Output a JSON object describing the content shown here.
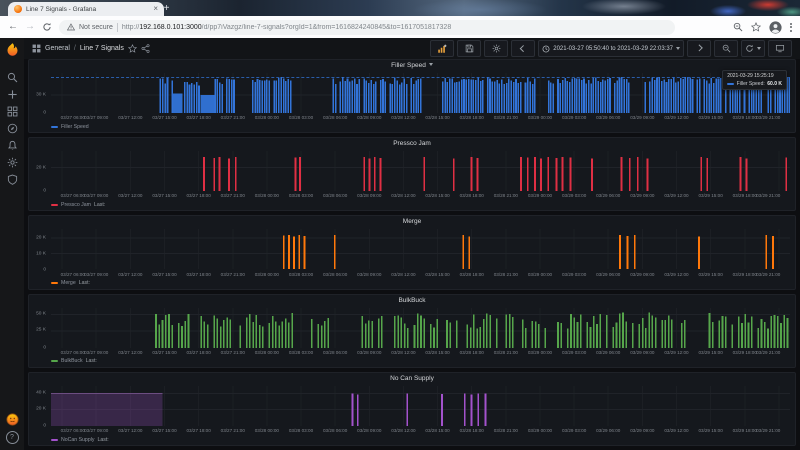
{
  "browser": {
    "tab": {
      "title": "Line 7 Signals - Grafana",
      "close_glyph": "×",
      "new_tab_glyph": "+"
    },
    "toolbar": {
      "back_glyph": "←",
      "forward_glyph": "→"
    },
    "address": {
      "security_label": "Not secure",
      "scheme": "http://",
      "host": "192.168.0.101:3000",
      "path": "/d/pp7iVazgz/line-7-signals?orgId=1&from=1616824240845&to=1617051817328"
    }
  },
  "grafana": {
    "nav": {
      "folder": "General",
      "separator": "/",
      "dashboard": "Line 7 Signals",
      "time_range": "2021-03-27 05:50:40 to 2021-03-29 22:03:37"
    },
    "sidebar": {
      "help_glyph": "?"
    },
    "tooltip": {
      "time": "2021-03-29 15:25:19",
      "label": "Filler Speed:",
      "value": "60.0 K"
    }
  },
  "chart_data": {
    "type": "bar",
    "x_range": [
      "2021-03-27 05:50:40",
      "2021-03-29 22:03:37"
    ],
    "x_ticks": [
      "03/27 06:00",
      "03/27 09:00",
      "03/27 12:00",
      "03/27 15:00",
      "03/27 18:00",
      "03/27 21:00",
      "03/28 00:00",
      "03/28 03:00",
      "03/28 06:00",
      "03/28 09:00",
      "03/28 12:00",
      "03/28 15:00",
      "03/28 18:00",
      "03/28 21:00",
      "03/29 00:00",
      "03/29 03:00",
      "03/29 06:00",
      "03/29 09:00",
      "03/29 12:00",
      "03/29 15:00",
      "03/29 18:00",
      "03/29 21:00"
    ],
    "panels": [
      {
        "id": "filler-speed",
        "title": "Filler Speed",
        "has_caret": true,
        "color": "#3274D9",
        "y_max_estimate": 60000,
        "y_ticks": [
          [
            "30 K",
            0.5
          ],
          [
            "0",
            0
          ]
        ],
        "dashed_top": true,
        "legend": "Filler Speed",
        "last_label": "",
        "pitch": 3.2,
        "skip": 0.12,
        "bar_hmin": 0.8,
        "segments": [
          [
            "bars",
            0.147,
            0.165,
            1.0
          ],
          [
            "solid",
            0.165,
            0.178,
            0.55
          ],
          [
            "bars",
            0.18,
            0.202,
            0.9
          ],
          [
            "solid",
            0.202,
            0.221,
            0.5
          ],
          [
            "bars",
            0.221,
            0.248,
            1.0
          ],
          [
            "bars",
            0.272,
            0.325,
            1.0
          ],
          [
            "bars",
            0.381,
            0.502,
            1.0
          ],
          [
            "bars",
            0.529,
            0.656,
            1.0
          ],
          [
            "bars",
            0.669,
            0.783,
            1.0
          ],
          [
            "bars",
            0.803,
            1.0,
            1.0
          ]
        ]
      },
      {
        "id": "pressco-jam",
        "title": "Pressco Jam",
        "has_caret": false,
        "color": "#E02F44",
        "y_max_estimate": 30000,
        "y_ticks": [
          [
            "20 K",
            0.66
          ],
          [
            "0",
            0
          ]
        ],
        "dashed_top": false,
        "legend": "Pressco Jam",
        "last_label": "Last:",
        "segments": [
          [
            "spike",
            0.207,
            0.95
          ],
          [
            "spike",
            0.221,
            0.92
          ],
          [
            "spike",
            0.228,
            0.95
          ],
          [
            "spike",
            0.241,
            0.9
          ],
          [
            "spike",
            0.25,
            0.94
          ],
          [
            "spike",
            0.331,
            0.93
          ],
          [
            "spike",
            0.337,
            0.95
          ],
          [
            "spike",
            0.424,
            0.95
          ],
          [
            "spike",
            0.431,
            0.9
          ],
          [
            "spike",
            0.438,
            0.94
          ],
          [
            "spike",
            0.446,
            0.92
          ],
          [
            "spike",
            0.505,
            0.95
          ],
          [
            "spike",
            0.545,
            0.9
          ],
          [
            "spike",
            0.569,
            0.94
          ],
          [
            "spike",
            0.577,
            0.92
          ],
          [
            "spike",
            0.636,
            0.95
          ],
          [
            "spike",
            0.645,
            0.93
          ],
          [
            "spike",
            0.655,
            0.95
          ],
          [
            "spike",
            0.663,
            0.9
          ],
          [
            "spike",
            0.673,
            0.95
          ],
          [
            "spike",
            0.684,
            0.92
          ],
          [
            "spike",
            0.692,
            0.95
          ],
          [
            "spike",
            0.703,
            0.93
          ],
          [
            "spike",
            0.732,
            0.9
          ],
          [
            "spike",
            0.772,
            0.95
          ],
          [
            "spike",
            0.783,
            0.92
          ],
          [
            "spike",
            0.794,
            0.95
          ],
          [
            "spike",
            0.807,
            0.9
          ],
          [
            "spike",
            0.88,
            0.94
          ],
          [
            "spike",
            0.888,
            0.92
          ],
          [
            "spike",
            0.933,
            0.95
          ],
          [
            "spike",
            0.941,
            0.9
          ],
          [
            "spike",
            0.995,
            0.93
          ]
        ]
      },
      {
        "id": "merge",
        "title": "Merge",
        "has_caret": false,
        "color": "#FF780A",
        "y_max_estimate": 23000,
        "y_ticks": [
          [
            "20 K",
            0.86
          ],
          [
            "10 K",
            0.43
          ],
          [
            "0",
            0
          ]
        ],
        "dashed_top": false,
        "legend": "Merge",
        "last_label": "Last:",
        "segments": [
          [
            "spike",
            0.315,
            0.93
          ],
          [
            "spike",
            0.322,
            0.95
          ],
          [
            "spike",
            0.329,
            0.9
          ],
          [
            "spike",
            0.336,
            0.95
          ],
          [
            "spike",
            0.343,
            0.92
          ],
          [
            "spike",
            0.384,
            0.94
          ],
          [
            "spike",
            0.558,
            0.95
          ],
          [
            "spike",
            0.566,
            0.9
          ],
          [
            "spike",
            0.77,
            0.95
          ],
          [
            "spike",
            0.78,
            0.92
          ],
          [
            "spike",
            0.79,
            0.94
          ],
          [
            "spike",
            0.877,
            0.9
          ],
          [
            "spike",
            0.968,
            0.95
          ],
          [
            "spike",
            0.977,
            0.92
          ]
        ]
      },
      {
        "id": "bulkbuck",
        "title": "BulkBuck",
        "has_caret": false,
        "color": "#56A64B",
        "y_max_estimate": 52000,
        "y_ticks": [
          [
            "50 K",
            0.93
          ],
          [
            "25 K",
            0.48
          ],
          [
            "0",
            0
          ]
        ],
        "dashed_top": false,
        "legend": "BulkBuck",
        "last_label": "Last:",
        "pitch": 4.4,
        "skip": 0.26,
        "bar_hmin": 0.55,
        "segments": [
          [
            "bars",
            0.141,
            0.187,
            1.0
          ],
          [
            "bars",
            0.202,
            0.328,
            1.0
          ],
          [
            "bars",
            0.352,
            0.381,
            1.0
          ],
          [
            "bars",
            0.416,
            0.549,
            1.0
          ],
          [
            "bars",
            0.558,
            0.669,
            1.0
          ],
          [
            "bars",
            0.685,
            0.863,
            1.0
          ],
          [
            "bars",
            0.89,
            1.0,
            1.0
          ]
        ]
      },
      {
        "id": "no-can-supply",
        "title": "No Can Supply",
        "has_caret": false,
        "color": "#A352CC",
        "y_max_estimate": 44000,
        "y_ticks": [
          [
            "40 K",
            0.91
          ],
          [
            "20 K",
            0.46
          ],
          [
            "0",
            0
          ]
        ],
        "dashed_top": false,
        "legend": "NoCan Supply",
        "last_label": "Last:",
        "segments": [
          [
            "area",
            0.0,
            0.151,
            0.91
          ],
          [
            "spike",
            0.408,
            0.91
          ],
          [
            "spike",
            0.415,
            0.88
          ],
          [
            "spike",
            0.482,
            0.91
          ],
          [
            "spike",
            0.529,
            0.89
          ],
          [
            "spike",
            0.56,
            0.91
          ],
          [
            "spike",
            0.569,
            0.88
          ],
          [
            "spike",
            0.578,
            0.91
          ],
          [
            "spike",
            0.588,
            0.9
          ]
        ]
      }
    ]
  }
}
